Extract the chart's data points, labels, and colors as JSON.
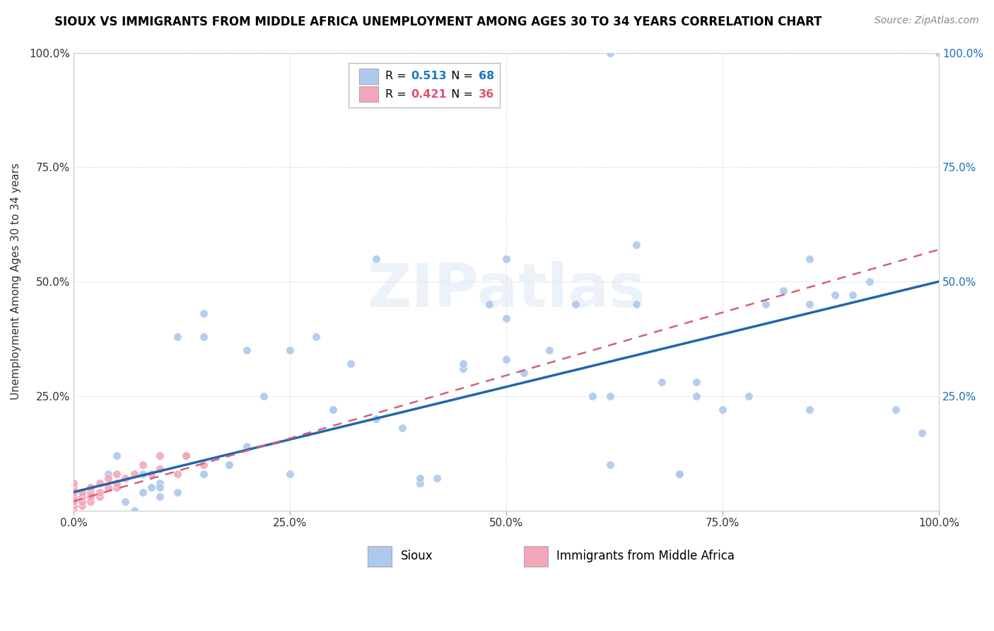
{
  "title": "SIOUX VS IMMIGRANTS FROM MIDDLE AFRICA UNEMPLOYMENT AMONG AGES 30 TO 34 YEARS CORRELATION CHART",
  "source": "Source: ZipAtlas.com",
  "ylabel": "Unemployment Among Ages 30 to 34 years",
  "xlim": [
    0.0,
    1.0
  ],
  "ylim": [
    0.0,
    1.0
  ],
  "xtick_positions": [
    0.0,
    0.25,
    0.5,
    0.75,
    1.0
  ],
  "xtick_labels": [
    "0.0%",
    "25.0%",
    "50.0%",
    "75.0%",
    "100.0%"
  ],
  "ytick_positions": [
    0.0,
    0.25,
    0.5,
    0.75,
    1.0
  ],
  "ytick_labels": [
    "",
    "25.0%",
    "50.0%",
    "75.0%",
    "100.0%"
  ],
  "ytick_labels_right": [
    "",
    "25.0%",
    "50.0%",
    "75.0%",
    "100.0%"
  ],
  "sioux_R": 0.513,
  "sioux_N": 68,
  "immigrants_R": 0.421,
  "immigrants_N": 36,
  "sioux_color": "#adc9ee",
  "sioux_line_color": "#2166ac",
  "immigrants_color": "#f4a6b8",
  "immigrants_line_color": "#d4607a",
  "legend_color_blue": "#1a7abf",
  "legend_color_pink": "#e05070",
  "watermark_text": "ZIPatlas",
  "sioux_x": [
    0.62,
    0.0,
    0.06,
    0.08,
    0.09,
    0.1,
    0.1,
    0.12,
    0.13,
    0.15,
    0.15,
    0.18,
    0.2,
    0.25,
    0.28,
    0.3,
    0.32,
    0.35,
    0.38,
    0.4,
    0.42,
    0.45,
    0.45,
    0.48,
    0.5,
    0.5,
    0.52,
    0.55,
    0.58,
    0.6,
    0.62,
    0.65,
    0.65,
    0.68,
    0.7,
    0.7,
    0.72,
    0.75,
    0.78,
    0.8,
    0.82,
    0.85,
    0.85,
    0.88,
    0.9,
    0.92,
    0.95,
    0.98,
    1.0,
    0.02,
    0.04,
    0.05,
    0.07,
    0.08,
    0.1,
    0.12,
    0.15,
    0.18,
    0.2,
    0.22,
    0.25,
    0.3,
    0.35,
    0.4,
    0.5,
    0.62,
    0.72,
    0.85
  ],
  "sioux_y": [
    1.0,
    0.0,
    0.02,
    0.04,
    0.05,
    0.03,
    0.06,
    0.04,
    0.12,
    0.38,
    0.43,
    0.1,
    0.14,
    0.08,
    0.38,
    0.22,
    0.32,
    0.2,
    0.18,
    0.06,
    0.07,
    0.31,
    0.32,
    0.45,
    0.42,
    0.33,
    0.3,
    0.35,
    0.45,
    0.25,
    0.1,
    0.58,
    0.45,
    0.28,
    0.08,
    0.08,
    0.28,
    0.22,
    0.25,
    0.45,
    0.48,
    0.55,
    0.45,
    0.47,
    0.47,
    0.5,
    0.22,
    0.17,
    1.0,
    0.05,
    0.08,
    0.12,
    0.0,
    0.08,
    0.05,
    0.38,
    0.08,
    0.1,
    0.35,
    0.25,
    0.35,
    0.22,
    0.55,
    0.07,
    0.55,
    0.25,
    0.25,
    0.22
  ],
  "immigrants_x": [
    0.0,
    0.0,
    0.0,
    0.0,
    0.0,
    0.0,
    0.0,
    0.0,
    0.0,
    0.0,
    0.0,
    0.01,
    0.01,
    0.01,
    0.01,
    0.02,
    0.02,
    0.02,
    0.02,
    0.03,
    0.03,
    0.03,
    0.04,
    0.04,
    0.05,
    0.05,
    0.05,
    0.06,
    0.07,
    0.08,
    0.09,
    0.1,
    0.1,
    0.12,
    0.13,
    0.15
  ],
  "immigrants_y": [
    0.0,
    0.0,
    0.0,
    0.01,
    0.01,
    0.02,
    0.02,
    0.03,
    0.04,
    0.05,
    0.06,
    0.01,
    0.02,
    0.03,
    0.04,
    0.02,
    0.03,
    0.04,
    0.05,
    0.03,
    0.04,
    0.06,
    0.05,
    0.07,
    0.05,
    0.06,
    0.08,
    0.07,
    0.08,
    0.1,
    0.08,
    0.09,
    0.12,
    0.08,
    0.12,
    0.1
  ]
}
